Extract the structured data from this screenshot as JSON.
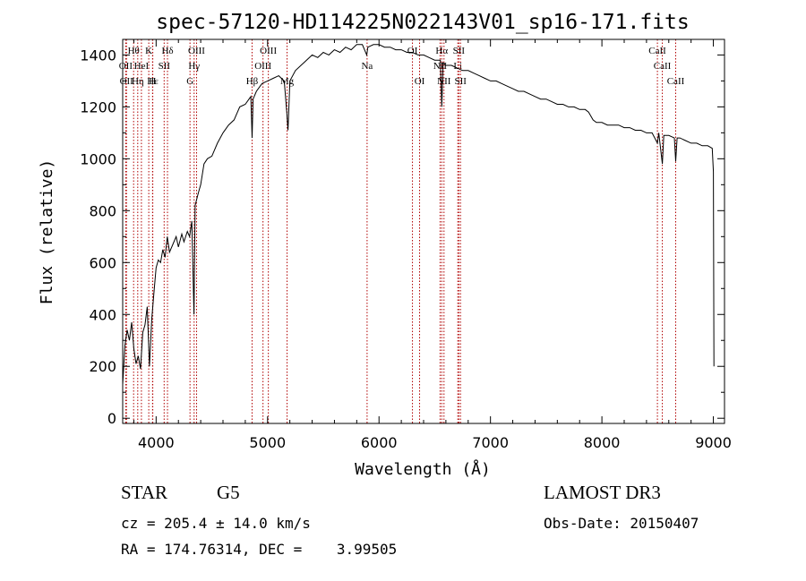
{
  "chart_data": {
    "type": "line",
    "title": "spec-57120-HD114225N022143V01_sp16-171.fits",
    "xlabel": "Wavelength (Å)",
    "ylabel": "Flux (relative)",
    "xlim": [
      3700,
      9100
    ],
    "ylim": [
      -20,
      1460
    ],
    "xticks": [
      4000,
      5000,
      6000,
      7000,
      8000,
      9000
    ],
    "yticks": [
      0,
      200,
      400,
      600,
      800,
      1000,
      1200,
      1400
    ],
    "grid": false,
    "series": [
      {
        "color": "#000000",
        "points": [
          [
            3700,
            130
          ],
          [
            3720,
            280
          ],
          [
            3740,
            340
          ],
          [
            3760,
            300
          ],
          [
            3780,
            370
          ],
          [
            3800,
            270
          ],
          [
            3820,
            210
          ],
          [
            3840,
            240
          ],
          [
            3860,
            190
          ],
          [
            3880,
            330
          ],
          [
            3900,
            360
          ],
          [
            3920,
            430
          ],
          [
            3940,
            200
          ],
          [
            3960,
            380
          ],
          [
            3980,
            480
          ],
          [
            4000,
            580
          ],
          [
            4020,
            610
          ],
          [
            4040,
            600
          ],
          [
            4060,
            650
          ],
          [
            4080,
            620
          ],
          [
            4100,
            700
          ],
          [
            4120,
            640
          ],
          [
            4150,
            670
          ],
          [
            4180,
            700
          ],
          [
            4200,
            660
          ],
          [
            4230,
            710
          ],
          [
            4250,
            680
          ],
          [
            4280,
            720
          ],
          [
            4300,
            700
          ],
          [
            4320,
            760
          ],
          [
            4340,
            400
          ],
          [
            4350,
            820
          ],
          [
            4380,
            870
          ],
          [
            4400,
            900
          ],
          [
            4430,
            980
          ],
          [
            4460,
            1000
          ],
          [
            4500,
            1010
          ],
          [
            4550,
            1060
          ],
          [
            4600,
            1100
          ],
          [
            4650,
            1130
          ],
          [
            4700,
            1150
          ],
          [
            4750,
            1200
          ],
          [
            4800,
            1210
          ],
          [
            4850,
            1240
          ],
          [
            4861,
            1080
          ],
          [
            4870,
            1230
          ],
          [
            4900,
            1260
          ],
          [
            4950,
            1290
          ],
          [
            5000,
            1300
          ],
          [
            5050,
            1310
          ],
          [
            5100,
            1320
          ],
          [
            5150,
            1300
          ],
          [
            5172,
            1180
          ],
          [
            5183,
            1110
          ],
          [
            5200,
            1300
          ],
          [
            5250,
            1340
          ],
          [
            5300,
            1360
          ],
          [
            5350,
            1380
          ],
          [
            5400,
            1400
          ],
          [
            5450,
            1390
          ],
          [
            5500,
            1410
          ],
          [
            5550,
            1400
          ],
          [
            5600,
            1420
          ],
          [
            5650,
            1410
          ],
          [
            5700,
            1430
          ],
          [
            5750,
            1420
          ],
          [
            5800,
            1440
          ],
          [
            5850,
            1440
          ],
          [
            5890,
            1400
          ],
          [
            5900,
            1430
          ],
          [
            5950,
            1440
          ],
          [
            6000,
            1440
          ],
          [
            6050,
            1430
          ],
          [
            6100,
            1430
          ],
          [
            6150,
            1420
          ],
          [
            6200,
            1420
          ],
          [
            6250,
            1410
          ],
          [
            6300,
            1410
          ],
          [
            6350,
            1400
          ],
          [
            6400,
            1400
          ],
          [
            6450,
            1390
          ],
          [
            6500,
            1380
          ],
          [
            6550,
            1380
          ],
          [
            6563,
            1200
          ],
          [
            6575,
            1370
          ],
          [
            6600,
            1360
          ],
          [
            6650,
            1360
          ],
          [
            6700,
            1350
          ],
          [
            6750,
            1340
          ],
          [
            6800,
            1340
          ],
          [
            6850,
            1330
          ],
          [
            6900,
            1320
          ],
          [
            6950,
            1310
          ],
          [
            7000,
            1300
          ],
          [
            7050,
            1300
          ],
          [
            7100,
            1290
          ],
          [
            7150,
            1280
          ],
          [
            7200,
            1270
          ],
          [
            7250,
            1260
          ],
          [
            7300,
            1260
          ],
          [
            7350,
            1250
          ],
          [
            7400,
            1240
          ],
          [
            7450,
            1230
          ],
          [
            7500,
            1230
          ],
          [
            7550,
            1220
          ],
          [
            7600,
            1210
          ],
          [
            7650,
            1210
          ],
          [
            7700,
            1200
          ],
          [
            7750,
            1200
          ],
          [
            7800,
            1190
          ],
          [
            7850,
            1190
          ],
          [
            7880,
            1180
          ],
          [
            7920,
            1150
          ],
          [
            7950,
            1140
          ],
          [
            8000,
            1140
          ],
          [
            8050,
            1130
          ],
          [
            8100,
            1130
          ],
          [
            8150,
            1130
          ],
          [
            8200,
            1120
          ],
          [
            8250,
            1120
          ],
          [
            8300,
            1110
          ],
          [
            8350,
            1110
          ],
          [
            8400,
            1100
          ],
          [
            8450,
            1100
          ],
          [
            8498,
            1060
          ],
          [
            8510,
            1100
          ],
          [
            8542,
            980
          ],
          [
            8555,
            1090
          ],
          [
            8600,
            1090
          ],
          [
            8650,
            1080
          ],
          [
            8662,
            990
          ],
          [
            8675,
            1080
          ],
          [
            8700,
            1080
          ],
          [
            8750,
            1070
          ],
          [
            8800,
            1060
          ],
          [
            8850,
            1060
          ],
          [
            8900,
            1050
          ],
          [
            8950,
            1050
          ],
          [
            8990,
            1040
          ],
          [
            9000,
            950
          ],
          [
            9005,
            200
          ]
        ]
      }
    ],
    "line_markers": [
      {
        "wavelength": 3727,
        "label": "OII",
        "row": 2
      },
      {
        "wavelength": 3734,
        "label": "OII",
        "row": 3
      },
      {
        "wavelength": 3798,
        "label": "Hθ",
        "row": 1
      },
      {
        "wavelength": 3835,
        "label": "Hη",
        "row": 3
      },
      {
        "wavelength": 3868,
        "label": "HeI",
        "row": 2
      },
      {
        "wavelength": 3934,
        "label": "K",
        "row": 1
      },
      {
        "wavelength": 3968,
        "label": "H",
        "row": 3
      },
      {
        "wavelength": 3970,
        "label": "Hε",
        "row": 3
      },
      {
        "wavelength": 4072,
        "label": "SII",
        "row": 2
      },
      {
        "wavelength": 4102,
        "label": "Hδ",
        "row": 1
      },
      {
        "wavelength": 4304,
        "label": "G",
        "row": 3
      },
      {
        "wavelength": 4341,
        "label": "Hγ",
        "row": 2
      },
      {
        "wavelength": 4363,
        "label": "OIII",
        "row": 1
      },
      {
        "wavelength": 4861,
        "label": "Hβ",
        "row": 3
      },
      {
        "wavelength": 4959,
        "label": "OIII",
        "row": 2
      },
      {
        "wavelength": 5007,
        "label": "OIII",
        "row": 1
      },
      {
        "wavelength": 5175,
        "label": "Mg",
        "row": 3
      },
      {
        "wavelength": 5893,
        "label": "Na",
        "row": 2
      },
      {
        "wavelength": 6300,
        "label": "OI",
        "row": 1
      },
      {
        "wavelength": 6364,
        "label": "OI",
        "row": 3
      },
      {
        "wavelength": 6548,
        "label": "NII",
        "row": 2
      },
      {
        "wavelength": 6563,
        "label": "Hα",
        "row": 1
      },
      {
        "wavelength": 6583,
        "label": "NII",
        "row": 3
      },
      {
        "wavelength": 6707,
        "label": "Li",
        "row": 2
      },
      {
        "wavelength": 6716,
        "label": "SII",
        "row": 1
      },
      {
        "wavelength": 6731,
        "label": "SII",
        "row": 3
      },
      {
        "wavelength": 8498,
        "label": "CaII",
        "row": 1
      },
      {
        "wavelength": 8542,
        "label": "CaII",
        "row": 2
      },
      {
        "wavelength": 8662,
        "label": "CaII",
        "row": 3
      }
    ]
  },
  "info": {
    "class": "STAR",
    "subclass": "G5",
    "survey": "LAMOST DR3",
    "cz": "cz = 205.4 ± 14.0 km/s",
    "obs_date": "Obs-Date: 20150407",
    "radec": "RA = 174.76314, DEC =    3.99505"
  }
}
